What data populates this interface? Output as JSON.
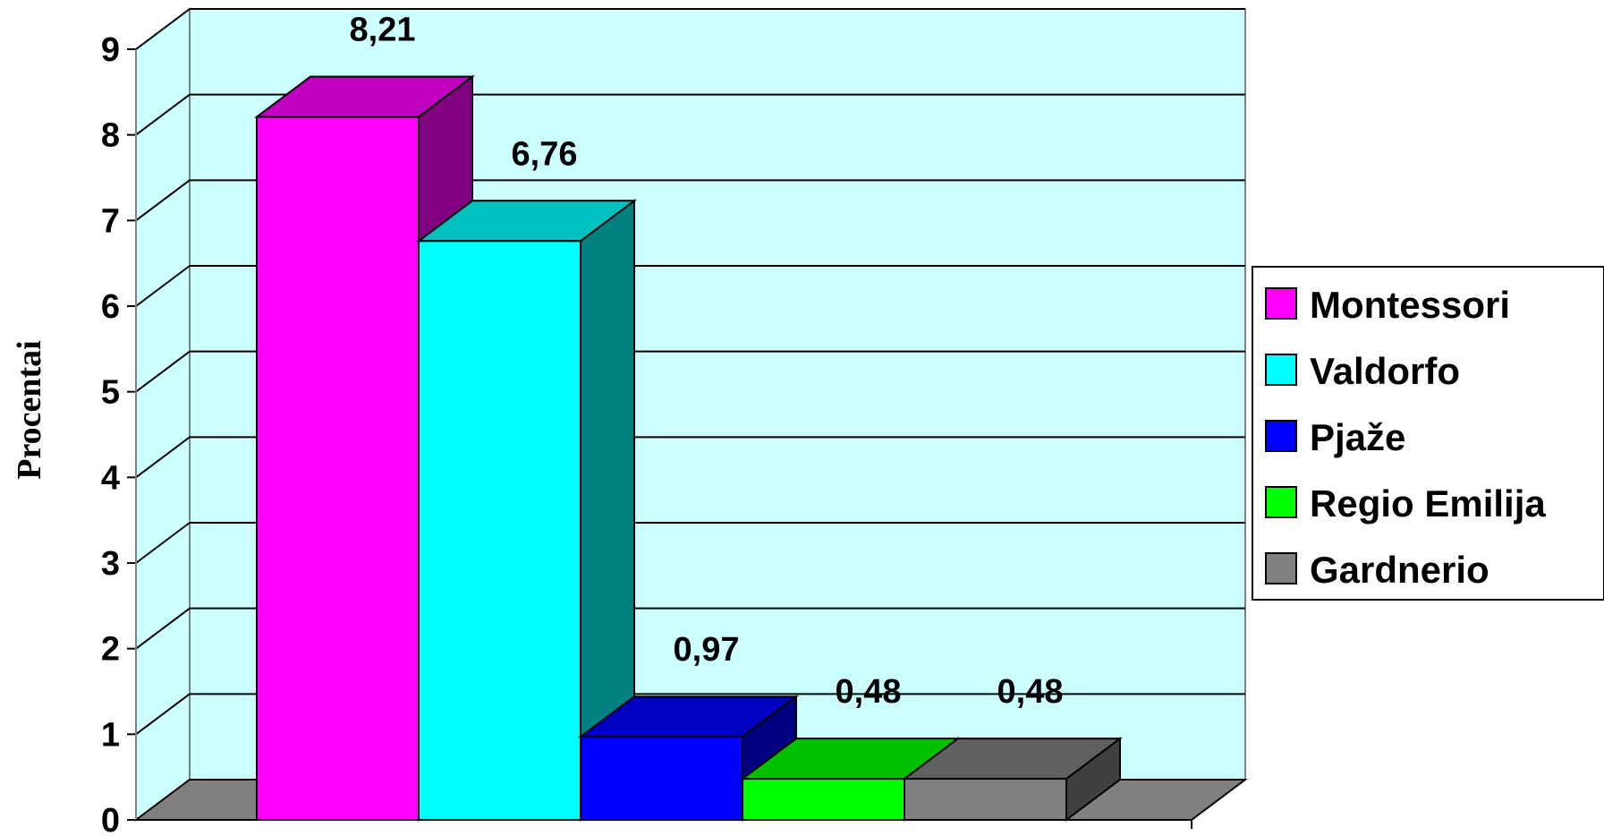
{
  "chart_data": {
    "type": "bar",
    "style": "3d-column",
    "categories": [
      "Montessori",
      "Valdorfo",
      "Pjaže",
      "Regio Emilija",
      "Gardnerio"
    ],
    "values": [
      8.21,
      6.76,
      0.97,
      0.48,
      0.48
    ],
    "data_labels": [
      "8,21",
      "6,76",
      "0,97",
      "0,48",
      "0,48"
    ],
    "ylabel": "Procentai",
    "ylim": [
      0,
      9
    ],
    "yticks": [
      "0",
      "1",
      "2",
      "3",
      "4",
      "5",
      "6",
      "7",
      "8",
      "9"
    ],
    "grid": true,
    "legend": {
      "placement": "right",
      "entries": [
        "Montessori",
        "Valdorfo",
        "Pjaže",
        "Regio Emilija",
        "Gardnerio"
      ]
    },
    "colors": {
      "front": [
        "#ff00ff",
        "#00ffff",
        "#0000ff",
        "#00ff00",
        "#808080"
      ],
      "top": [
        "#c000c0",
        "#00c0c0",
        "#0000c0",
        "#00c000",
        "#606060"
      ],
      "side": [
        "#800080",
        "#008080",
        "#000080",
        "#008000",
        "#404040"
      ],
      "back_wall": "#ccffff",
      "side_wall": "#ccffff",
      "floor": "#808080"
    }
  }
}
